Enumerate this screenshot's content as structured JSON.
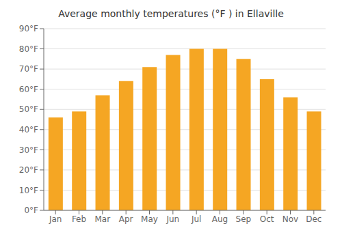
{
  "chart_data": {
    "type": "bar",
    "title": "Average monthly temperatures (°F ) in Ellaville",
    "categories": [
      "Jan",
      "Feb",
      "Mar",
      "Apr",
      "May",
      "Jun",
      "Jul",
      "Aug",
      "Sep",
      "Oct",
      "Nov",
      "Dec"
    ],
    "values": [
      46,
      49,
      57,
      64,
      71,
      77,
      80,
      80,
      75,
      65,
      56,
      49
    ],
    "color": "#F5A623",
    "ylim": [
      0,
      90
    ],
    "yticks": [
      {
        "value": 0,
        "label": "0°F"
      },
      {
        "value": 10,
        "label": "10°F"
      },
      {
        "value": 20,
        "label": "20°F"
      },
      {
        "value": 30,
        "label": "30°F"
      },
      {
        "value": 40,
        "label": "40°F"
      },
      {
        "value": 50,
        "label": "50°F"
      },
      {
        "value": 60,
        "label": "60°F"
      },
      {
        "value": 70,
        "label": "70°F"
      },
      {
        "value": 80,
        "label": "80°F"
      },
      {
        "value": 90,
        "label": "90°F"
      }
    ],
    "grid": true
  }
}
